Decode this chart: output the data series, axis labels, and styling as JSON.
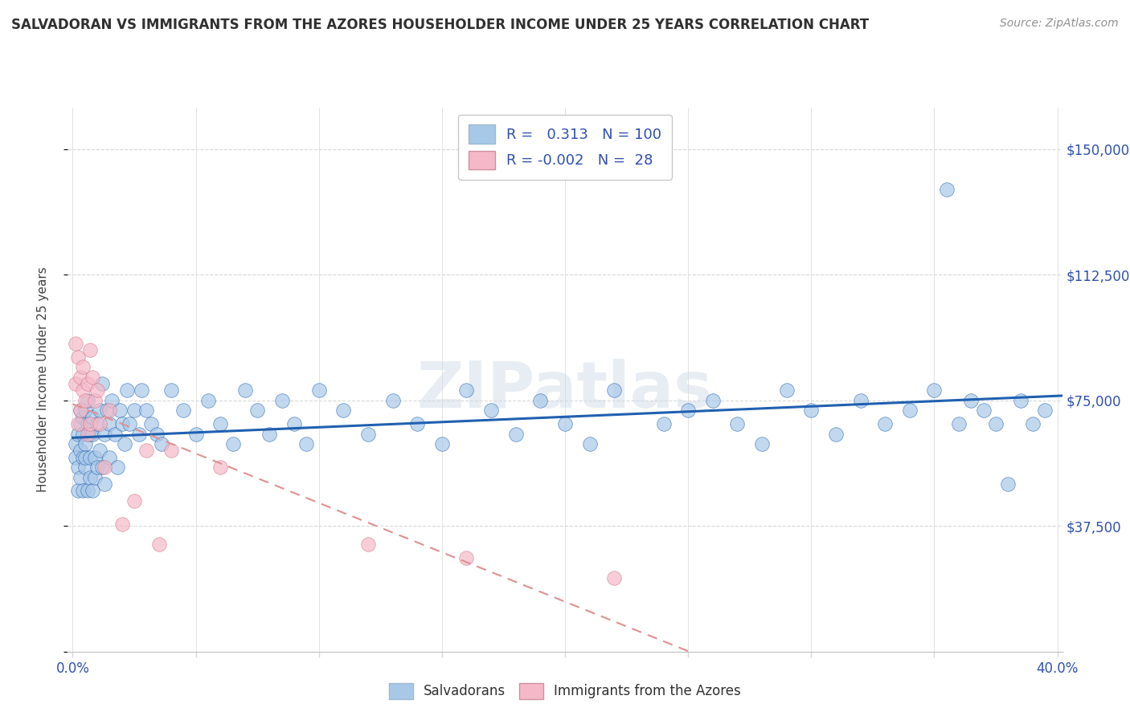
{
  "title": "SALVADORAN VS IMMIGRANTS FROM THE AZORES HOUSEHOLDER INCOME UNDER 25 YEARS CORRELATION CHART",
  "source": "Source: ZipAtlas.com",
  "ylabel": "Householder Income Under 25 years",
  "xlim": [
    -0.002,
    0.402
  ],
  "ylim": [
    0,
    162500
  ],
  "xtick_vals": [
    0.0,
    0.05,
    0.1,
    0.15,
    0.2,
    0.25,
    0.3,
    0.35,
    0.4
  ],
  "xtick_labels_show": [
    "0.0%",
    "",
    "",
    "",
    "",
    "",
    "",
    "",
    "40.0%"
  ],
  "ytick_vals": [
    0,
    37500,
    75000,
    112500,
    150000
  ],
  "ytick_labels_right": [
    "",
    "$37,500",
    "$75,000",
    "$112,500",
    "$150,000"
  ],
  "legend1_label": "Salvadorans",
  "legend2_label": "Immigrants from the Azores",
  "R1": 0.313,
  "N1": 100,
  "R2": -0.002,
  "N2": 28,
  "color1": "#a8c8e8",
  "color2": "#f4b8c8",
  "line1_color": "#2060b0",
  "line2_color": "#e09090",
  "background_color": "#ffffff",
  "grid_color": "#d8d8d8",
  "title_color": "#303030",
  "watermark": "ZIPatlas",
  "salvadoran_x": [
    0.001,
    0.001,
    0.002,
    0.002,
    0.002,
    0.003,
    0.003,
    0.003,
    0.003,
    0.004,
    0.004,
    0.004,
    0.004,
    0.005,
    0.005,
    0.005,
    0.005,
    0.006,
    0.006,
    0.006,
    0.007,
    0.007,
    0.007,
    0.008,
    0.008,
    0.008,
    0.009,
    0.009,
    0.01,
    0.01,
    0.011,
    0.011,
    0.012,
    0.012,
    0.013,
    0.013,
    0.014,
    0.015,
    0.015,
    0.016,
    0.017,
    0.018,
    0.019,
    0.02,
    0.021,
    0.022,
    0.023,
    0.025,
    0.027,
    0.028,
    0.03,
    0.032,
    0.034,
    0.036,
    0.04,
    0.045,
    0.05,
    0.055,
    0.06,
    0.065,
    0.07,
    0.075,
    0.08,
    0.085,
    0.09,
    0.095,
    0.1,
    0.11,
    0.12,
    0.13,
    0.14,
    0.15,
    0.16,
    0.17,
    0.18,
    0.19,
    0.2,
    0.21,
    0.22,
    0.24,
    0.25,
    0.26,
    0.27,
    0.28,
    0.29,
    0.3,
    0.31,
    0.32,
    0.33,
    0.34,
    0.35,
    0.355,
    0.36,
    0.365,
    0.37,
    0.375,
    0.38,
    0.385,
    0.39,
    0.395
  ],
  "salvadoran_y": [
    58000,
    62000,
    48000,
    65000,
    55000,
    72000,
    60000,
    52000,
    68000,
    58000,
    70000,
    48000,
    65000,
    55000,
    72000,
    62000,
    58000,
    68000,
    48000,
    75000,
    52000,
    65000,
    58000,
    70000,
    48000,
    65000,
    58000,
    52000,
    68000,
    55000,
    72000,
    60000,
    55000,
    80000,
    65000,
    50000,
    72000,
    68000,
    58000,
    75000,
    65000,
    55000,
    72000,
    68000,
    62000,
    78000,
    68000,
    72000,
    65000,
    78000,
    72000,
    68000,
    65000,
    62000,
    78000,
    72000,
    65000,
    75000,
    68000,
    62000,
    78000,
    72000,
    65000,
    75000,
    68000,
    62000,
    78000,
    72000,
    65000,
    75000,
    68000,
    62000,
    78000,
    72000,
    65000,
    75000,
    68000,
    62000,
    78000,
    68000,
    72000,
    75000,
    68000,
    62000,
    78000,
    72000,
    65000,
    75000,
    68000,
    72000,
    78000,
    138000,
    68000,
    75000,
    72000,
    68000,
    50000,
    75000,
    68000,
    72000
  ],
  "azores_x": [
    0.001,
    0.001,
    0.002,
    0.002,
    0.003,
    0.003,
    0.004,
    0.004,
    0.005,
    0.006,
    0.006,
    0.007,
    0.007,
    0.008,
    0.009,
    0.01,
    0.011,
    0.013,
    0.015,
    0.02,
    0.025,
    0.03,
    0.035,
    0.04,
    0.06,
    0.12,
    0.16,
    0.22
  ],
  "azores_y": [
    92000,
    80000,
    88000,
    68000,
    82000,
    72000,
    78000,
    85000,
    75000,
    80000,
    65000,
    90000,
    68000,
    82000,
    75000,
    78000,
    68000,
    55000,
    72000,
    38000,
    45000,
    60000,
    32000,
    60000,
    55000,
    32000,
    28000,
    22000
  ]
}
